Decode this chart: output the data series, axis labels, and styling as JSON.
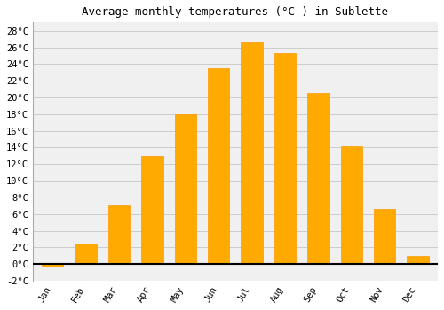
{
  "title": "Average monthly temperatures (°C ) in Sublette",
  "months": [
    "Jan",
    "Feb",
    "Mar",
    "Apr",
    "May",
    "Jun",
    "Jul",
    "Aug",
    "Sep",
    "Oct",
    "Nov",
    "Dec"
  ],
  "values": [
    -0.3,
    2.5,
    7.0,
    13.0,
    18.0,
    23.5,
    26.7,
    25.3,
    20.5,
    14.2,
    6.6,
    1.0
  ],
  "bar_color": "#FFAA00",
  "bar_edge_color": "#FF9900",
  "ylim": [
    -2,
    29
  ],
  "yticks": [
    -2,
    0,
    2,
    4,
    6,
    8,
    10,
    12,
    14,
    16,
    18,
    20,
    22,
    24,
    26,
    28
  ],
  "ytick_labels": [
    "-2°C",
    "0°C",
    "2°C",
    "4°C",
    "6°C",
    "8°C",
    "10°C",
    "12°C",
    "14°C",
    "16°C",
    "18°C",
    "20°C",
    "22°C",
    "24°C",
    "26°C",
    "28°C"
  ],
  "background_color": "#ffffff",
  "plot_bg_color": "#f0f0f0",
  "grid_color": "#cccccc",
  "title_fontsize": 9,
  "tick_fontsize": 7.5,
  "font_family": "monospace"
}
